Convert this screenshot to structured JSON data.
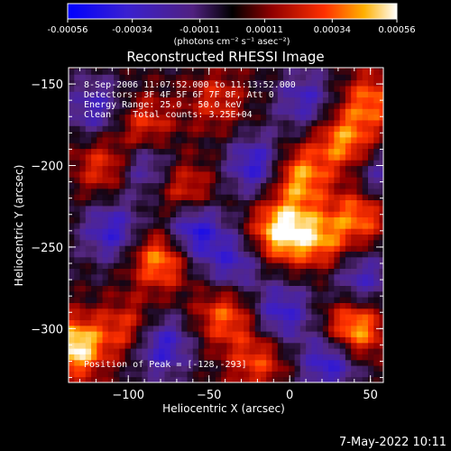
{
  "colorbar": {
    "ticks": [
      "-0.00056",
      "-0.00034",
      "-0.00011",
      "0.00011",
      "0.00034",
      "0.00056"
    ],
    "values": [
      -0.00056,
      -0.00034,
      -0.00011,
      0.00011,
      0.00034,
      0.00056
    ],
    "range": [
      -0.00056,
      0.00056
    ],
    "units_label": "(photons cm⁻² s⁻¹ asec⁻²)",
    "colormap": [
      "#0000ff",
      "#5a2a9a",
      "#000000",
      "#8a0000",
      "#ff2a00",
      "#ffb000",
      "#ffffff"
    ]
  },
  "overlay": {
    "lines": [
      "8-Sep-2006 11:07:52.000 to 11:13:52.000",
      "Detectors: 3F 4F 5F 6F 7F 8F, Att 0",
      "Energy Range: 25.0 - 50.0 keV",
      "Clean    Total counts: 3.25E+04"
    ],
    "peak": "Position of Peak = [-128,-293]"
  },
  "timestamp": "7-May-2022 10:11",
  "chart_data": {
    "type": "heatmap",
    "title": "Reconstructed RHESSI Image",
    "xlabel": "Heliocentric X (arcsec)",
    "ylabel": "Heliocentric Y (arcsec)",
    "xlim": [
      -137,
      58
    ],
    "ylim": [
      -333,
      -140
    ],
    "xticks": [
      -100,
      -50,
      0,
      50
    ],
    "yticks": [
      -150,
      -200,
      -250,
      -300
    ],
    "xtick_labels": [
      "−100",
      "−50",
      "0",
      "50"
    ],
    "ytick_labels": [
      "−150",
      "−200",
      "−250",
      "−300"
    ],
    "hotspots": [
      {
        "x": -133,
        "y": -311,
        "value": 0.00056
      },
      {
        "x": -5,
        "y": -240,
        "value": 0.00056
      },
      {
        "x": -80,
        "y": -257,
        "value": 0.00045
      },
      {
        "x": 40,
        "y": -300,
        "value": 0.0005
      },
      {
        "x": 5,
        "y": -207,
        "value": 0.00045
      },
      {
        "x": 33,
        "y": -185,
        "value": 0.0004
      },
      {
        "x": 45,
        "y": -228,
        "value": 0.0004
      },
      {
        "x": -40,
        "y": -292,
        "value": 0.00035
      },
      {
        "x": -115,
        "y": -200,
        "value": 0.0003
      },
      {
        "x": -90,
        "y": -175,
        "value": 0.0003
      },
      {
        "x": 20,
        "y": -245,
        "value": 0.00035
      },
      {
        "x": -65,
        "y": -215,
        "value": 0.0003
      },
      {
        "x": -20,
        "y": -320,
        "value": 0.0003
      },
      {
        "x": -100,
        "y": -300,
        "value": 0.0003
      },
      {
        "x": 50,
        "y": -160,
        "value": 0.00035
      },
      {
        "x": -45,
        "y": -160,
        "value": 0.00025
      }
    ],
    "coldspots": [
      {
        "x": -20,
        "y": -200,
        "value": -0.0004
      },
      {
        "x": -60,
        "y": -240,
        "value": -0.00045
      },
      {
        "x": 25,
        "y": -320,
        "value": -0.0004
      },
      {
        "x": -110,
        "y": -240,
        "value": -0.00035
      },
      {
        "x": 10,
        "y": -160,
        "value": -0.0003
      },
      {
        "x": -80,
        "y": -310,
        "value": -0.0004
      },
      {
        "x": 45,
        "y": -270,
        "value": -0.0003
      },
      {
        "x": -120,
        "y": -165,
        "value": -0.0003
      },
      {
        "x": -35,
        "y": -260,
        "value": -0.0003
      },
      {
        "x": 55,
        "y": -210,
        "value": -0.0003
      },
      {
        "x": -5,
        "y": -290,
        "value": -0.00035
      },
      {
        "x": -90,
        "y": -200,
        "value": -0.0003
      }
    ]
  }
}
